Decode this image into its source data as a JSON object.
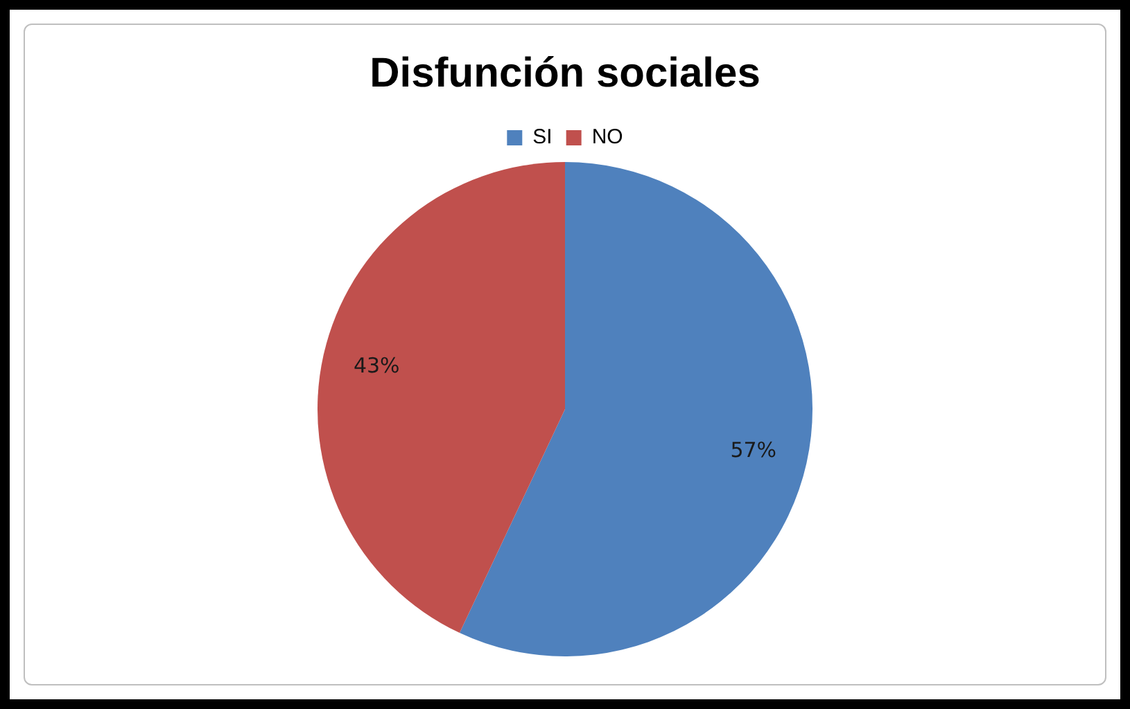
{
  "chart_data": {
    "type": "pie",
    "title": "Disfunción sociales",
    "categories": [
      "SI",
      "NO"
    ],
    "values": [
      57,
      43
    ],
    "colors": [
      "#4f81bd",
      "#c0504d"
    ],
    "value_labels": [
      "57%",
      "43%"
    ],
    "legend": "top"
  }
}
